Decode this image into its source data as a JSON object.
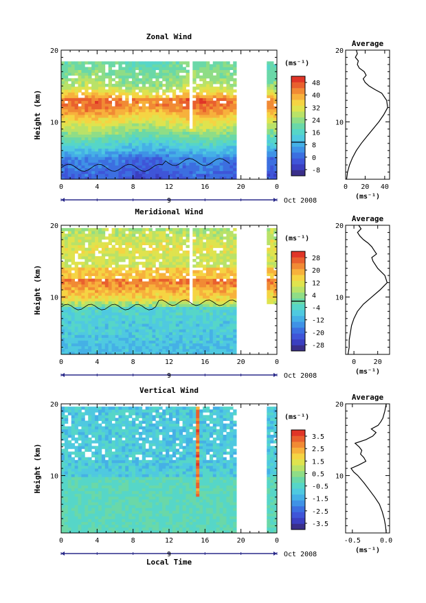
{
  "chart_data": [
    {
      "type": "heatmap",
      "title": "Zonal Wind",
      "ylabel": "Height (km)",
      "xlabel": "",
      "x_ticks": [
        "0",
        "4",
        "8",
        "12",
        "16",
        "20",
        "0"
      ],
      "y_ticks": [
        "20",
        "10"
      ],
      "ylim": [
        2,
        20
      ],
      "date_day": "9",
      "date_label": "Oct 2008",
      "colorbar": {
        "unit": "(ms⁻¹)",
        "ticks": [
          "48",
          "40",
          "32",
          "24",
          "16",
          "8",
          "0",
          "-8"
        ],
        "zero_contour": "0"
      },
      "average": {
        "title": "Average",
        "x_ticks": [
          "0",
          "20",
          "40"
        ],
        "xlim": [
          0,
          45
        ],
        "xlabel": "(ms⁻¹)",
        "y_ticks": [
          "20",
          "10"
        ],
        "profile": [
          [
            2,
            1
          ],
          [
            3,
            2
          ],
          [
            4,
            4
          ],
          [
            5,
            7
          ],
          [
            6,
            11
          ],
          [
            7,
            16
          ],
          [
            8,
            22
          ],
          [
            9,
            28
          ],
          [
            10,
            34
          ],
          [
            11,
            39
          ],
          [
            12,
            43
          ],
          [
            13,
            42
          ],
          [
            14,
            37
          ],
          [
            14.5,
            30
          ],
          [
            15,
            24
          ],
          [
            15.5,
            20
          ],
          [
            16,
            18
          ],
          [
            16.5,
            21
          ],
          [
            17,
            19
          ],
          [
            17.5,
            14
          ],
          [
            18,
            12
          ],
          [
            18.5,
            13
          ],
          [
            19,
            10
          ],
          [
            19.5,
            12
          ],
          [
            20,
            11
          ]
        ]
      },
      "colors": [
        "#3a2f8a",
        "#3b3fc0",
        "#3f55d8",
        "#3c6fe0",
        "#3f92e6",
        "#45b0e6",
        "#4fc9e0",
        "#56d6c8",
        "#6ad8a8",
        "#8fdd86",
        "#b9e268",
        "#dfe34e",
        "#f5d443",
        "#f7b13c",
        "#f18a34",
        "#e9602e",
        "#e03527"
      ]
    },
    {
      "type": "heatmap",
      "title": "Meridional Wind",
      "ylabel": "Height (km)",
      "xlabel": "",
      "x_ticks": [
        "0",
        "4",
        "8",
        "12",
        "16",
        "20",
        "0"
      ],
      "y_ticks": [
        "20",
        "10"
      ],
      "ylim": [
        2,
        20
      ],
      "date_day": "9",
      "date_label": "Oct 2008",
      "colorbar": {
        "unit": "(ms⁻¹)",
        "ticks": [
          "28",
          "20",
          "12",
          "4",
          "-4",
          "-12",
          "-20",
          "-28"
        ],
        "zero_contour": "0"
      },
      "average": {
        "title": "Average",
        "x_ticks": [
          "0",
          "20"
        ],
        "xlim": [
          -7,
          30
        ],
        "xlabel": "(ms⁻¹)",
        "y_ticks": [
          "20",
          "10"
        ],
        "profile": [
          [
            2,
            -5
          ],
          [
            3,
            -4
          ],
          [
            4,
            -4
          ],
          [
            5,
            -3
          ],
          [
            6,
            -2
          ],
          [
            7,
            0
          ],
          [
            8,
            3
          ],
          [
            9,
            8
          ],
          [
            10,
            15
          ],
          [
            11,
            22
          ],
          [
            12,
            28
          ],
          [
            13,
            26
          ],
          [
            14,
            20
          ],
          [
            15,
            16
          ],
          [
            15.5,
            15
          ],
          [
            16,
            19
          ],
          [
            16.5,
            17
          ],
          [
            17,
            15
          ],
          [
            17.5,
            12
          ],
          [
            18,
            8
          ],
          [
            18.5,
            5
          ],
          [
            19,
            3
          ],
          [
            19.5,
            6
          ],
          [
            20,
            4
          ]
        ]
      },
      "colors": [
        "#3a2f8a",
        "#3b3fc0",
        "#3f55d8",
        "#3c6fe0",
        "#3f92e6",
        "#45b0e6",
        "#4fc9e0",
        "#56d6c8",
        "#6ad8a8",
        "#8fdd86",
        "#b9e268",
        "#dfe34e",
        "#f5d443",
        "#f7b13c",
        "#f18a34",
        "#e9602e",
        "#e03527"
      ]
    },
    {
      "type": "heatmap",
      "title": "Vertical Wind",
      "ylabel": "Height (km)",
      "xlabel": "Local Time",
      "x_ticks": [
        "0",
        "4",
        "8",
        "12",
        "16",
        "20",
        "0"
      ],
      "y_ticks": [
        "20",
        "10"
      ],
      "ylim": [
        2,
        20
      ],
      "date_day": "9",
      "date_label": "Oct 2008",
      "colorbar": {
        "unit": "(ms⁻¹)",
        "ticks": [
          "3.5",
          "2.5",
          "1.5",
          "0.5",
          "-0.5",
          "-1.5",
          "-2.5",
          "-3.5"
        ],
        "zero_contour": ""
      },
      "average": {
        "title": "Average",
        "x_ticks": [
          "-0.5",
          "0.0"
        ],
        "xlim": [
          -0.6,
          0.05
        ],
        "xlabel": "(ms⁻¹)",
        "y_ticks": [
          "20",
          "10"
        ],
        "profile": [
          [
            2,
            0.0
          ],
          [
            3,
            -0.01
          ],
          [
            4,
            -0.03
          ],
          [
            5,
            -0.06
          ],
          [
            6,
            -0.1
          ],
          [
            7,
            -0.17
          ],
          [
            8,
            -0.25
          ],
          [
            9,
            -0.33
          ],
          [
            10,
            -0.42
          ],
          [
            10.5,
            -0.48
          ],
          [
            11,
            -0.52
          ],
          [
            11.5,
            -0.4
          ],
          [
            12,
            -0.3
          ],
          [
            12.5,
            -0.33
          ],
          [
            13,
            -0.38
          ],
          [
            13.5,
            -0.36
          ],
          [
            14,
            -0.4
          ],
          [
            14.5,
            -0.46
          ],
          [
            15,
            -0.3
          ],
          [
            15.5,
            -0.2
          ],
          [
            16,
            -0.15
          ],
          [
            16.5,
            -0.22
          ],
          [
            17,
            -0.12
          ],
          [
            17.5,
            -0.08
          ],
          [
            18,
            -0.05
          ],
          [
            19,
            -0.02
          ],
          [
            20,
            0.0
          ]
        ]
      },
      "colors": [
        "#3a2f8a",
        "#3b3fc0",
        "#3f55d8",
        "#3c6fe0",
        "#3f92e6",
        "#45b0e6",
        "#4fc9e0",
        "#56d6c8",
        "#6ad8a8",
        "#8fdd86",
        "#b9e268",
        "#dfe34e",
        "#f5d443",
        "#f7b13c",
        "#f18a34",
        "#e9602e",
        "#e03527"
      ]
    }
  ]
}
